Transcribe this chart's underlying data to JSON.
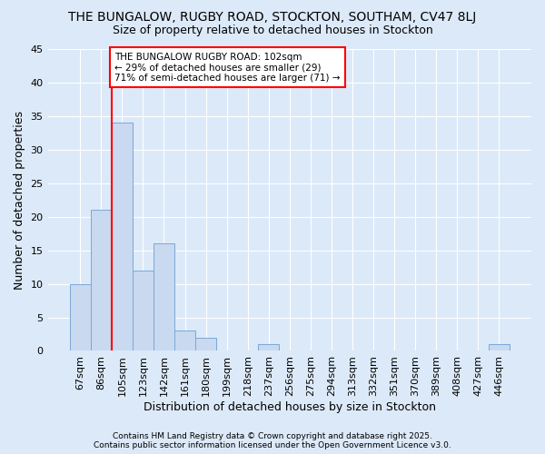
{
  "title1": "THE BUNGALOW, RUGBY ROAD, STOCKTON, SOUTHAM, CV47 8LJ",
  "title2": "Size of property relative to detached houses in Stockton",
  "xlabel": "Distribution of detached houses by size in Stockton",
  "ylabel": "Number of detached properties",
  "bar_values": [
    10,
    21,
    34,
    12,
    16,
    3,
    2,
    0,
    0,
    1,
    0,
    0,
    0,
    0,
    0,
    0,
    0,
    0,
    0,
    1
  ],
  "categories": [
    "67sqm",
    "86sqm",
    "105sqm",
    "123sqm",
    "142sqm",
    "161sqm",
    "180sqm",
    "199sqm",
    "218sqm",
    "237sqm",
    "256sqm",
    "275sqm",
    "294sqm",
    "313sqm",
    "332sqm",
    "351sqm",
    "370sqm",
    "389sqm",
    "408sqm",
    "427sqm",
    "446sqm"
  ],
  "bar_color": "#c9d9f0",
  "bar_edgecolor": "#7aa8d8",
  "background_color": "#dce9f8",
  "grid_color": "#ffffff",
  "red_line_index": 2,
  "red_line_color": "red",
  "annotation_text": "THE BUNGALOW RUGBY ROAD: 102sqm\n← 29% of detached houses are smaller (29)\n71% of semi-detached houses are larger (71) →",
  "annotation_box_color": "white",
  "annotation_box_edgecolor": "red",
  "ylim": [
    0,
    45
  ],
  "yticks": [
    0,
    5,
    10,
    15,
    20,
    25,
    30,
    35,
    40,
    45
  ],
  "footer1": "Contains HM Land Registry data © Crown copyright and database right 2025.",
  "footer2": "Contains public sector information licensed under the Open Government Licence v3.0.",
  "title_fontsize": 10,
  "subtitle_fontsize": 9,
  "axis_label_fontsize": 9,
  "tick_fontsize": 8,
  "annotation_fontsize": 7.5,
  "footer_fontsize": 6.5
}
